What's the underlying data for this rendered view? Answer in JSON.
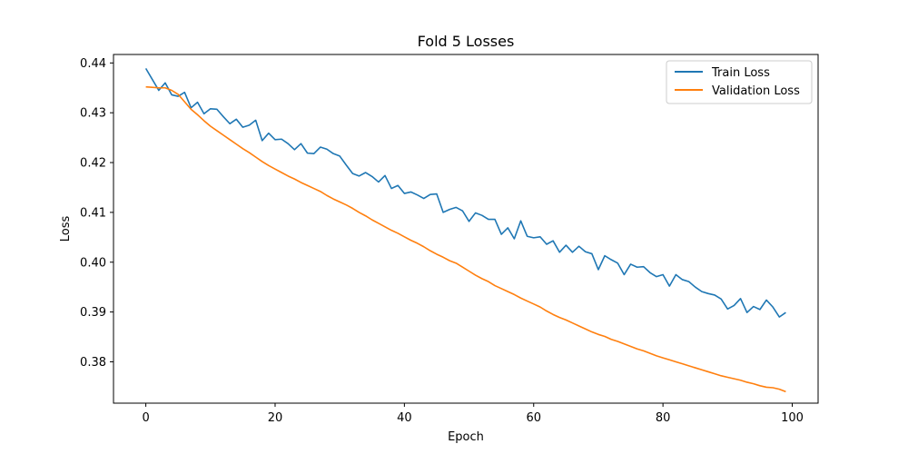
{
  "chart_data": {
    "type": "line",
    "title": "Fold 5 Losses",
    "xlabel": "Epoch",
    "ylabel": "Loss",
    "xlim": [
      -5,
      104
    ],
    "ylim": [
      0.3717,
      0.4417
    ],
    "xticks": [
      0,
      20,
      40,
      60,
      80,
      100
    ],
    "xtick_labels": [
      "0",
      "20",
      "40",
      "60",
      "80",
      "100"
    ],
    "yticks": [
      0.38,
      0.39,
      0.4,
      0.41,
      0.42,
      0.43,
      0.44
    ],
    "ytick_labels": [
      "0.38",
      "0.39",
      "0.40",
      "0.41",
      "0.42",
      "0.43",
      "0.44"
    ],
    "grid": false,
    "legend_position": "top-right",
    "series": [
      {
        "name": "Train Loss",
        "color": "#1f77b4",
        "x_start": 0,
        "values": [
          0.4389,
          0.4367,
          0.4345,
          0.436,
          0.4336,
          0.4333,
          0.4341,
          0.431,
          0.4321,
          0.4298,
          0.4308,
          0.4307,
          0.4292,
          0.4278,
          0.4287,
          0.4271,
          0.4275,
          0.4285,
          0.4244,
          0.4259,
          0.4246,
          0.4247,
          0.4238,
          0.4226,
          0.4238,
          0.4219,
          0.4218,
          0.4231,
          0.4227,
          0.4218,
          0.4213,
          0.4195,
          0.4178,
          0.4173,
          0.418,
          0.4172,
          0.4161,
          0.4174,
          0.4148,
          0.4154,
          0.4138,
          0.4141,
          0.4135,
          0.4128,
          0.4136,
          0.4137,
          0.41,
          0.4106,
          0.411,
          0.4103,
          0.4082,
          0.4099,
          0.4094,
          0.4086,
          0.4086,
          0.4056,
          0.4069,
          0.4047,
          0.4083,
          0.4052,
          0.4049,
          0.4051,
          0.4036,
          0.4043,
          0.402,
          0.4034,
          0.402,
          0.4032,
          0.4021,
          0.4017,
          0.3985,
          0.4013,
          0.4005,
          0.3998,
          0.3975,
          0.3996,
          0.399,
          0.3991,
          0.3979,
          0.3971,
          0.3975,
          0.3952,
          0.3975,
          0.3965,
          0.3961,
          0.395,
          0.3941,
          0.3937,
          0.3934,
          0.3926,
          0.3906,
          0.3913,
          0.3927,
          0.3899,
          0.3911,
          0.3905,
          0.3924,
          0.391,
          0.389,
          0.3899
        ]
      },
      {
        "name": "Validation Loss",
        "color": "#ff7f0e",
        "x_start": 0,
        "values": [
          0.4352,
          0.4351,
          0.435,
          0.435,
          0.4345,
          0.4337,
          0.4322,
          0.4307,
          0.4296,
          0.4284,
          0.4273,
          0.4264,
          0.4255,
          0.4246,
          0.4237,
          0.4228,
          0.422,
          0.4211,
          0.4202,
          0.4194,
          0.4187,
          0.418,
          0.4173,
          0.4167,
          0.416,
          0.4154,
          0.4148,
          0.4142,
          0.4134,
          0.4127,
          0.4121,
          0.4115,
          0.4108,
          0.41,
          0.4093,
          0.4085,
          0.4078,
          0.4071,
          0.4064,
          0.4058,
          0.4051,
          0.4044,
          0.4038,
          0.4031,
          0.4023,
          0.4016,
          0.401,
          0.4003,
          0.3998,
          0.399,
          0.3982,
          0.3974,
          0.3967,
          0.3961,
          0.3953,
          0.3947,
          0.3941,
          0.3935,
          0.3928,
          0.3922,
          0.3916,
          0.391,
          0.3902,
          0.3895,
          0.3889,
          0.3884,
          0.3878,
          0.3872,
          0.3866,
          0.386,
          0.3855,
          0.3851,
          0.3845,
          0.3841,
          0.3836,
          0.3831,
          0.3826,
          0.3822,
          0.3817,
          0.3812,
          0.3808,
          0.3804,
          0.38,
          0.3796,
          0.3792,
          0.3788,
          0.3784,
          0.378,
          0.3776,
          0.3772,
          0.3769,
          0.3766,
          0.3763,
          0.3759,
          0.3756,
          0.3752,
          0.3749,
          0.3748,
          0.3745,
          0.374
        ]
      }
    ]
  }
}
